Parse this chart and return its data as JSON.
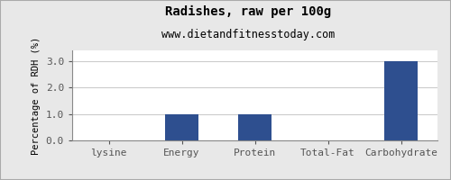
{
  "title": "Radishes, raw per 100g",
  "subtitle": "www.dietandfitnesstoday.com",
  "categories": [
    "lysine",
    "Energy",
    "Protein",
    "Total-Fat",
    "Carbohydrate"
  ],
  "values": [
    0.0,
    1.0,
    1.0,
    0.0,
    3.0
  ],
  "bar_color": "#2e4f8f",
  "ylabel": "Percentage of RDH (%)",
  "ylim": [
    0,
    3.4
  ],
  "yticks": [
    0.0,
    1.0,
    2.0,
    3.0
  ],
  "background_color": "#e8e8e8",
  "plot_bg_color": "#ffffff",
  "title_fontsize": 10,
  "subtitle_fontsize": 8.5,
  "tick_fontsize": 8,
  "ylabel_fontsize": 7.5,
  "border_color": "#aaaaaa"
}
